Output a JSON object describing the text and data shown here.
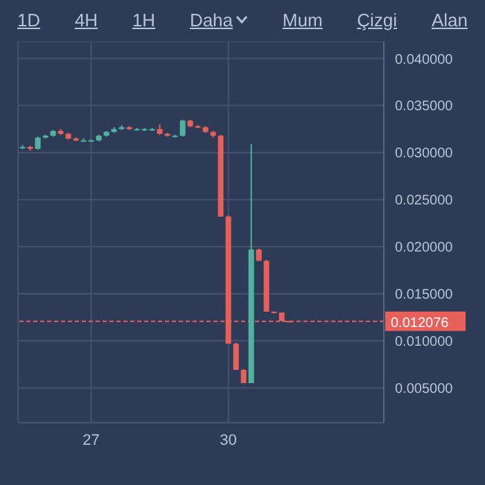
{
  "chart_data": {
    "type": "candlestick",
    "annotations": [
      "1D",
      "4H",
      "1H",
      "Daha",
      "Mum",
      "Çizgi",
      "Alan"
    ],
    "x": [
      25.5,
      25.667,
      25.833,
      26.0,
      26.167,
      26.333,
      26.5,
      26.667,
      26.833,
      27.0,
      27.167,
      27.333,
      27.5,
      27.667,
      27.833,
      28.0,
      28.167,
      28.333,
      28.5,
      28.667,
      28.833,
      29.0,
      29.167,
      29.333,
      29.5,
      29.667,
      29.833,
      30.0,
      30.167,
      30.333,
      30.5,
      30.667,
      30.833,
      31.0,
      31.167,
      31.333
    ],
    "ohlc": [
      [
        0.0306,
        0.0308,
        0.0304,
        0.0306
      ],
      [
        0.0306,
        0.0307,
        0.0302,
        0.0304
      ],
      [
        0.0304,
        0.0317,
        0.0303,
        0.0316
      ],
      [
        0.0316,
        0.0319,
        0.0315,
        0.0318
      ],
      [
        0.0318,
        0.0324,
        0.0317,
        0.0323
      ],
      [
        0.0323,
        0.0325,
        0.0319,
        0.032
      ],
      [
        0.032,
        0.0321,
        0.0314,
        0.0315
      ],
      [
        0.0315,
        0.0316,
        0.0312,
        0.0313
      ],
      [
        0.0313,
        0.0315,
        0.0312,
        0.0313
      ],
      [
        0.0313,
        0.0314,
        0.0312,
        0.0313
      ],
      [
        0.0313,
        0.0319,
        0.0312,
        0.0318
      ],
      [
        0.0318,
        0.0323,
        0.0317,
        0.0322
      ],
      [
        0.0322,
        0.0327,
        0.0321,
        0.0325
      ],
      [
        0.0325,
        0.0329,
        0.0324,
        0.0327
      ],
      [
        0.0327,
        0.0328,
        0.0324,
        0.0325
      ],
      [
        0.0325,
        0.0326,
        0.0324,
        0.0325
      ],
      [
        0.0325,
        0.0326,
        0.0323,
        0.0324
      ],
      [
        0.0324,
        0.0326,
        0.0323,
        0.0325
      ],
      [
        0.0325,
        0.033,
        0.0319,
        0.032
      ],
      [
        0.032,
        0.0321,
        0.0317,
        0.0318
      ],
      [
        0.0318,
        0.0319,
        0.0316,
        0.0318
      ],
      [
        0.0318,
        0.0335,
        0.0317,
        0.0334
      ],
      [
        0.0334,
        0.0335,
        0.0327,
        0.0328
      ],
      [
        0.0328,
        0.0329,
        0.0326,
        0.0327
      ],
      [
        0.0327,
        0.0328,
        0.0321,
        0.0322
      ],
      [
        0.0322,
        0.0323,
        0.0316,
        0.0318
      ],
      [
        0.0318,
        0.0319,
        0.0232,
        0.0232
      ],
      [
        0.0232,
        0.0233,
        0.0097,
        0.0097
      ],
      [
        0.0097,
        0.0098,
        0.0069,
        0.0069
      ],
      [
        0.0069,
        0.007,
        0.0055,
        0.0055
      ],
      [
        0.0055,
        0.0309,
        0.0055,
        0.0197
      ],
      [
        0.0197,
        0.0198,
        0.0185,
        0.0185
      ],
      [
        0.0185,
        0.0186,
        0.0131,
        0.0131
      ],
      [
        0.0131,
        0.0131,
        0.0129,
        0.013
      ],
      [
        0.013,
        0.013,
        0.0121,
        0.0121
      ],
      [
        0.0121,
        0.0121,
        0.012076,
        0.012076
      ]
    ],
    "colors": [
      "#4fb3a0",
      "#e8605a",
      "#4fb3a0",
      "#4fb3a0",
      "#4fb3a0",
      "#e8605a",
      "#e8605a",
      "#e8605a",
      "#4fb3a0",
      "#4fb3a0",
      "#4fb3a0",
      "#4fb3a0",
      "#4fb3a0",
      "#4fb3a0",
      "#e8605a",
      "#4fb3a0",
      "#4fb3a0",
      "#4fb3a0",
      "#e8605a",
      "#e8605a",
      "#4fb3a0",
      "#4fb3a0",
      "#e8605a",
      "#e8605a",
      "#e8605a",
      "#e8605a",
      "#e8605a",
      "#e8605a",
      "#e8605a",
      "#e8605a",
      "#4fb3a0",
      "#e8605a",
      "#e8605a",
      "#e8605a",
      "#e8605a",
      "#e8605a"
    ],
    "xlim": [
      25.4,
      33.4
    ],
    "xticks": [
      27,
      30
    ],
    "ylim": [
      0.0013,
      0.0418
    ],
    "yticks": [
      {
        "value": 0.005,
        "label": "0.005000"
      },
      {
        "value": 0.01,
        "label": "0.010000"
      },
      {
        "value": 0.015,
        "label": "0.015000"
      },
      {
        "value": 0.02,
        "label": "0.020000"
      },
      {
        "value": 0.025,
        "label": "0.025000"
      },
      {
        "value": 0.03,
        "label": "0.030000"
      },
      {
        "value": 0.035,
        "label": "0.035000"
      },
      {
        "value": 0.04,
        "label": "0.040000"
      }
    ],
    "ref_lines": [
      {
        "axis": "y",
        "value": 0.012076,
        "label": "0.012076",
        "color": "#e8605a",
        "line_style": "dashed"
      }
    ],
    "grid": true
  }
}
